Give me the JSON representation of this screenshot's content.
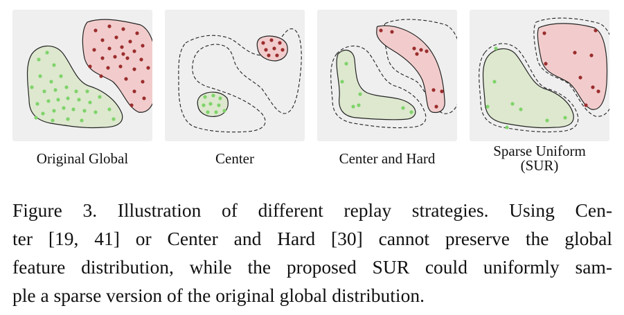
{
  "figure": {
    "panels": [
      {
        "id": "original-global",
        "label": "Original Global"
      },
      {
        "id": "center",
        "label": "Center"
      },
      {
        "id": "center-and-hard",
        "label": "Center and Hard"
      },
      {
        "id": "sparse-uniform",
        "label_line1": "Sparse Uniform",
        "label_line2": "(SUR)"
      }
    ],
    "caption_lines": [
      "Figure 3.  Illustration of different replay strategies.  Using Cen-",
      "ter [19, 41] or Center and Hard [30] cannot preserve the global",
      "feature distribution, while the proposed SUR could uniformly sam-",
      "ple a sparse version of the original global distribution."
    ]
  },
  "colors": {
    "panel_bg": "#efefef",
    "green_fill": "#dde8cf",
    "green_dot": "#7fd36a",
    "red_fill": "#f2cccc",
    "red_dot": "#9b2d2d",
    "outline": "#222222"
  }
}
